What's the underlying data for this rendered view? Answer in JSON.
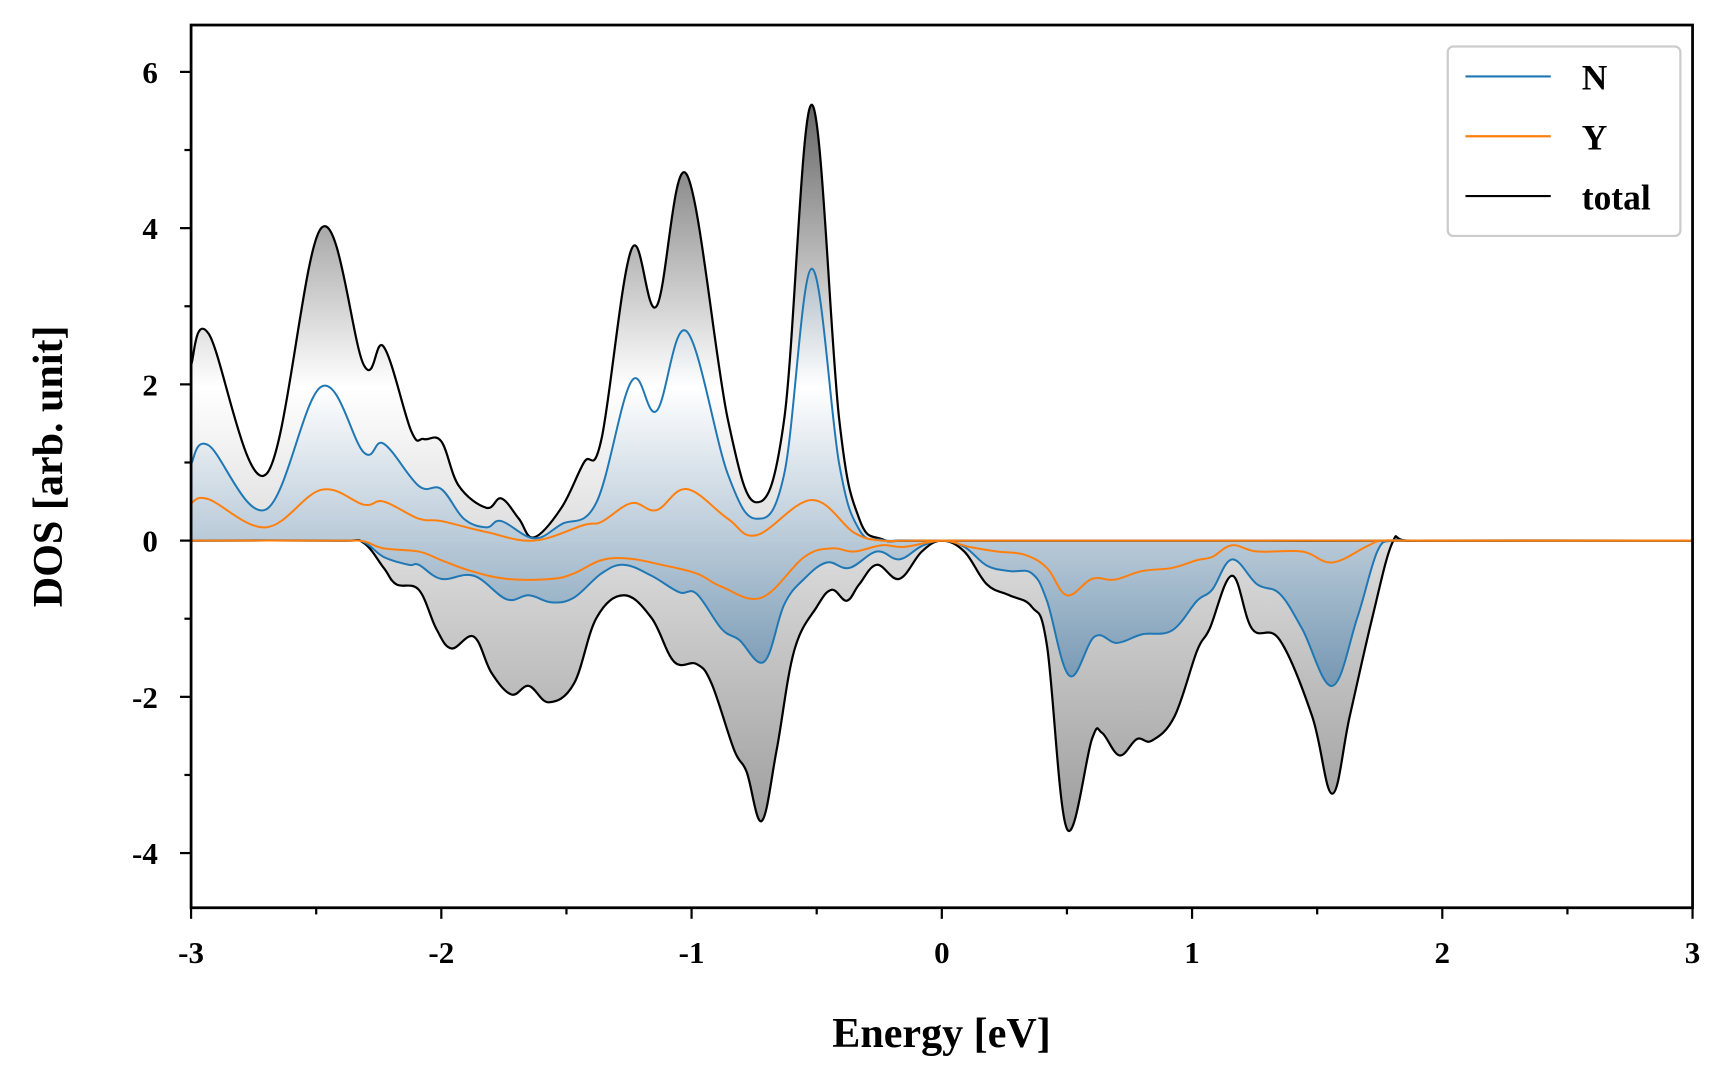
{
  "chart_data": {
    "type": "line",
    "title": "",
    "xlabel": "Energy [eV]",
    "ylabel": "DOS [arb. unit]",
    "xlim": [
      -3,
      3
    ],
    "ylim": [
      -4.7,
      6.6
    ],
    "xticks": [
      -3,
      -2,
      -1,
      0,
      1,
      2,
      3
    ],
    "xtick_labels": [
      "-3",
      "-2",
      "-1",
      "0",
      "1",
      "2",
      "3"
    ],
    "yticks": [
      -4,
      -2,
      0,
      2,
      4,
      6
    ],
    "ytick_labels": [
      "-4",
      "-2",
      "0",
      "2",
      "4",
      "6"
    ],
    "grid": false,
    "legend_position": "top-right",
    "colors": {
      "N": "#1f77b4",
      "Y": "#ff7f0e",
      "total": "#000000"
    },
    "series": [
      {
        "name": "N",
        "spin": "up",
        "filled": true,
        "points": [
          [
            -3,
            0.98
          ],
          [
            -2.93,
            1.22
          ],
          [
            -2.7,
            0.4
          ],
          [
            -2.48,
            1.97
          ],
          [
            -2.31,
            1.13
          ],
          [
            -2.23,
            1.24
          ],
          [
            -2.09,
            0.7
          ],
          [
            -2.0,
            0.66
          ],
          [
            -1.91,
            0.28
          ],
          [
            -1.82,
            0.17
          ],
          [
            -1.76,
            0.25
          ],
          [
            -1.63,
            0.03
          ],
          [
            -1.52,
            0.21
          ],
          [
            -1.38,
            0.49
          ],
          [
            -1.24,
            2.04
          ],
          [
            -1.14,
            1.66
          ],
          [
            -1.02,
            2.68
          ],
          [
            -0.855,
            0.85
          ],
          [
            -0.74,
            0.28
          ],
          [
            -0.63,
            0.85
          ],
          [
            -0.52,
            3.48
          ],
          [
            -0.41,
            0.98
          ],
          [
            -0.33,
            0.14
          ],
          [
            -0.24,
            0.01
          ],
          [
            -0.1,
            0
          ],
          [
            3,
            0
          ]
        ]
      },
      {
        "name": "Y",
        "spin": "up",
        "filled": false,
        "points": [
          [
            -3,
            0.48
          ],
          [
            -2.93,
            0.53
          ],
          [
            -2.7,
            0.17
          ],
          [
            -2.48,
            0.65
          ],
          [
            -2.31,
            0.46
          ],
          [
            -2.23,
            0.5
          ],
          [
            -2.09,
            0.28
          ],
          [
            -2.0,
            0.25
          ],
          [
            -1.82,
            0.11
          ],
          [
            -1.63,
            0.0
          ],
          [
            -1.43,
            0.2
          ],
          [
            -1.36,
            0.24
          ],
          [
            -1.24,
            0.48
          ],
          [
            -1.14,
            0.39
          ],
          [
            -1.02,
            0.66
          ],
          [
            -0.855,
            0.28
          ],
          [
            -0.74,
            0.07
          ],
          [
            -0.52,
            0.52
          ],
          [
            -0.35,
            0.1
          ],
          [
            -0.24,
            0.0
          ],
          [
            -0.1,
            0
          ],
          [
            3,
            0
          ]
        ]
      },
      {
        "name": "total",
        "spin": "up",
        "filled": true,
        "points": [
          [
            -3,
            2.25
          ],
          [
            -2.93,
            2.65
          ],
          [
            -2.7,
            0.85
          ],
          [
            -2.48,
            4.0
          ],
          [
            -2.31,
            2.25
          ],
          [
            -2.23,
            2.48
          ],
          [
            -2.12,
            1.4
          ],
          [
            -2.07,
            1.3
          ],
          [
            -2.0,
            1.27
          ],
          [
            -1.93,
            0.7
          ],
          [
            -1.82,
            0.42
          ],
          [
            -1.76,
            0.54
          ],
          [
            -1.69,
            0.28
          ],
          [
            -1.63,
            0.04
          ],
          [
            -1.52,
            0.42
          ],
          [
            -1.43,
            1.0
          ],
          [
            -1.36,
            1.3
          ],
          [
            -1.24,
            3.73
          ],
          [
            -1.14,
            3.0
          ],
          [
            -1.02,
            4.69
          ],
          [
            -0.855,
            1.55
          ],
          [
            -0.74,
            0.49
          ],
          [
            -0.63,
            1.55
          ],
          [
            -0.52,
            5.58
          ],
          [
            -0.41,
            1.55
          ],
          [
            -0.33,
            0.28
          ],
          [
            -0.24,
            0.02
          ],
          [
            -0.1,
            0
          ],
          [
            3,
            0
          ]
        ]
      },
      {
        "name": "N",
        "spin": "down",
        "filled": true,
        "points": [
          [
            -3,
            0
          ],
          [
            -2.4,
            0
          ],
          [
            -2.31,
            -0.02
          ],
          [
            -2.23,
            -0.21
          ],
          [
            -2.13,
            -0.31
          ],
          [
            -2.09,
            -0.31
          ],
          [
            -2.0,
            -0.49
          ],
          [
            -1.87,
            -0.45
          ],
          [
            -1.74,
            -0.75
          ],
          [
            -1.65,
            -0.7
          ],
          [
            -1.56,
            -0.79
          ],
          [
            -1.47,
            -0.73
          ],
          [
            -1.36,
            -0.42
          ],
          [
            -1.27,
            -0.31
          ],
          [
            -1.16,
            -0.45
          ],
          [
            -1.05,
            -0.66
          ],
          [
            -0.98,
            -0.68
          ],
          [
            -0.88,
            -1.13
          ],
          [
            -0.81,
            -1.27
          ],
          [
            -0.71,
            -1.55
          ],
          [
            -0.63,
            -0.82
          ],
          [
            -0.55,
            -0.49
          ],
          [
            -0.46,
            -0.28
          ],
          [
            -0.37,
            -0.35
          ],
          [
            -0.26,
            -0.14
          ],
          [
            -0.17,
            -0.24
          ],
          [
            -0.08,
            -0.07
          ],
          [
            0,
            0
          ],
          [
            0.09,
            -0.08
          ],
          [
            0.18,
            -0.32
          ],
          [
            0.27,
            -0.39
          ],
          [
            0.36,
            -0.42
          ],
          [
            0.42,
            -0.77
          ],
          [
            0.51,
            -1.73
          ],
          [
            0.61,
            -1.23
          ],
          [
            0.7,
            -1.31
          ],
          [
            0.8,
            -1.2
          ],
          [
            0.92,
            -1.15
          ],
          [
            1.02,
            -0.77
          ],
          [
            1.08,
            -0.63
          ],
          [
            1.16,
            -0.24
          ],
          [
            1.26,
            -0.56
          ],
          [
            1.35,
            -0.68
          ],
          [
            1.44,
            -1.13
          ],
          [
            1.56,
            -1.86
          ],
          [
            1.66,
            -0.99
          ],
          [
            1.74,
            -0.14
          ],
          [
            1.8,
            0
          ],
          [
            1.9,
            0
          ],
          [
            3,
            0
          ]
        ]
      },
      {
        "name": "Y",
        "spin": "down",
        "filled": false,
        "points": [
          [
            -3,
            0
          ],
          [
            -2.4,
            0
          ],
          [
            -2.31,
            -0.01
          ],
          [
            -2.23,
            -0.1
          ],
          [
            -2.09,
            -0.14
          ],
          [
            -2.0,
            -0.25
          ],
          [
            -1.89,
            -0.38
          ],
          [
            -1.74,
            -0.49
          ],
          [
            -1.56,
            -0.49
          ],
          [
            -1.47,
            -0.42
          ],
          [
            -1.36,
            -0.25
          ],
          [
            -1.25,
            -0.23
          ],
          [
            -1.12,
            -0.31
          ],
          [
            -0.98,
            -0.42
          ],
          [
            -0.88,
            -0.59
          ],
          [
            -0.72,
            -0.73
          ],
          [
            -0.55,
            -0.21
          ],
          [
            -0.44,
            -0.1
          ],
          [
            -0.35,
            -0.14
          ],
          [
            -0.24,
            -0.06
          ],
          [
            -0.15,
            -0.08
          ],
          [
            0,
            0
          ],
          [
            0.11,
            -0.08
          ],
          [
            0.22,
            -0.14
          ],
          [
            0.33,
            -0.18
          ],
          [
            0.42,
            -0.35
          ],
          [
            0.5,
            -0.7
          ],
          [
            0.6,
            -0.49
          ],
          [
            0.69,
            -0.5
          ],
          [
            0.8,
            -0.39
          ],
          [
            0.92,
            -0.35
          ],
          [
            1.02,
            -0.25
          ],
          [
            1.08,
            -0.21
          ],
          [
            1.16,
            -0.06
          ],
          [
            1.26,
            -0.14
          ],
          [
            1.44,
            -0.14
          ],
          [
            1.56,
            -0.28
          ],
          [
            1.7,
            -0.07
          ],
          [
            1.76,
            0
          ],
          [
            1.9,
            0
          ],
          [
            3,
            0
          ]
        ]
      },
      {
        "name": "total",
        "spin": "down",
        "filled": true,
        "points": [
          [
            -3,
            0
          ],
          [
            -2.4,
            0
          ],
          [
            -2.31,
            -0.03
          ],
          [
            -2.23,
            -0.35
          ],
          [
            -2.18,
            -0.56
          ],
          [
            -2.09,
            -0.63
          ],
          [
            -2.02,
            -1.13
          ],
          [
            -1.96,
            -1.38
          ],
          [
            -1.87,
            -1.23
          ],
          [
            -1.8,
            -1.69
          ],
          [
            -1.72,
            -1.97
          ],
          [
            -1.65,
            -1.86
          ],
          [
            -1.57,
            -2.07
          ],
          [
            -1.47,
            -1.83
          ],
          [
            -1.38,
            -0.99
          ],
          [
            -1.27,
            -0.7
          ],
          [
            -1.16,
            -0.99
          ],
          [
            -1.07,
            -1.55
          ],
          [
            -0.98,
            -1.58
          ],
          [
            -0.92,
            -1.83
          ],
          [
            -0.83,
            -2.68
          ],
          [
            -0.78,
            -2.96
          ],
          [
            -0.72,
            -3.59
          ],
          [
            -0.66,
            -2.68
          ],
          [
            -0.59,
            -1.41
          ],
          [
            -0.5,
            -0.85
          ],
          [
            -0.44,
            -0.63
          ],
          [
            -0.38,
            -0.77
          ],
          [
            -0.33,
            -0.56
          ],
          [
            -0.26,
            -0.31
          ],
          [
            -0.17,
            -0.49
          ],
          [
            -0.08,
            -0.14
          ],
          [
            0,
            0
          ],
          [
            0.09,
            -0.14
          ],
          [
            0.18,
            -0.56
          ],
          [
            0.27,
            -0.7
          ],
          [
            0.36,
            -0.85
          ],
          [
            0.42,
            -1.34
          ],
          [
            0.5,
            -3.69
          ],
          [
            0.6,
            -2.54
          ],
          [
            0.64,
            -2.46
          ],
          [
            0.71,
            -2.75
          ],
          [
            0.78,
            -2.54
          ],
          [
            0.84,
            -2.56
          ],
          [
            0.93,
            -2.25
          ],
          [
            1.02,
            -1.41
          ],
          [
            1.07,
            -1.13
          ],
          [
            1.16,
            -0.45
          ],
          [
            1.24,
            -1.13
          ],
          [
            1.35,
            -1.27
          ],
          [
            1.48,
            -2.25
          ],
          [
            1.56,
            -3.24
          ],
          [
            1.63,
            -2.25
          ],
          [
            1.72,
            -0.99
          ],
          [
            1.8,
            -0.03
          ],
          [
            1.86,
            0
          ],
          [
            3,
            0
          ]
        ]
      }
    ],
    "legend": [
      "N",
      "Y",
      "total"
    ]
  }
}
